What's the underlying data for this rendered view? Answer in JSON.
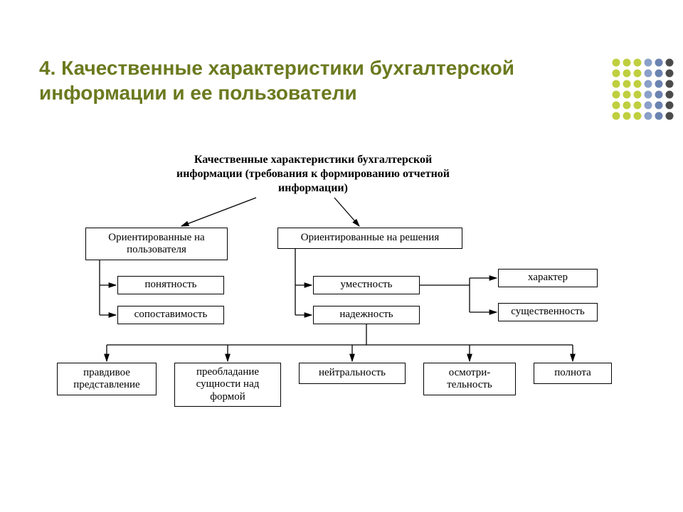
{
  "slide": {
    "title_color": "#6b7a1f",
    "title": "4. Качественные характеристики бухгалтерской информации и ее пользователи"
  },
  "diagram": {
    "type": "tree",
    "stroke": "#000000",
    "root_label": "Качественные характеристики бухгалтерской информации (требования к формированию отчетной информации)",
    "nodes": {
      "user_oriented": "Ориентированные на пользователя",
      "decision_oriented": "Ориентированные на решения",
      "clarity": "понятность",
      "comparability": "сопоставимость",
      "relevance": "уместность",
      "reliability": "надежность",
      "nature": "характер",
      "materiality": "существенность",
      "truthful": "правдивое представление",
      "substance": "преобладание сущности над формой",
      "neutrality": "нейтральность",
      "prudence": "осмотри-тельность",
      "completeness": "полнота"
    }
  },
  "dotgrid": {
    "colors": [
      "#bfcf3f",
      "#bfcf3f",
      "#bfcf3f",
      "#8aa0c8",
      "#6b83b0",
      "#4b4b4b",
      "#bfcf3f",
      "#bfcf3f",
      "#bfcf3f",
      "#8aa0c8",
      "#6b83b0",
      "#4b4b4b",
      "#bfcf3f",
      "#bfcf3f",
      "#bfcf3f",
      "#8aa0c8",
      "#6b83b0",
      "#4b4b4b",
      "#bfcf3f",
      "#bfcf3f",
      "#bfcf3f",
      "#8aa0c8",
      "#6b83b0",
      "#4b4b4b",
      "#bfcf3f",
      "#bfcf3f",
      "#bfcf3f",
      "#8aa0c8",
      "#6b83b0",
      "#4b4b4b",
      "#bfcf3f",
      "#bfcf3f",
      "#bfcf3f",
      "#8aa0c8",
      "#6b83b0",
      "#4b4b4b"
    ],
    "dot_r": 5.5,
    "gap": 15
  }
}
